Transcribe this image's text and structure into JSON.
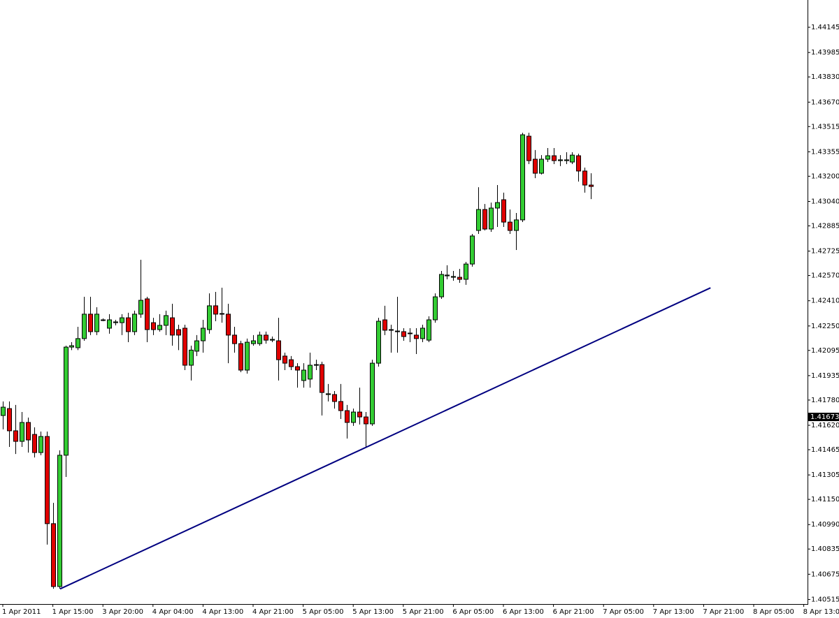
{
  "chart_data": {
    "type": "candlestick",
    "open": [
      1.41682,
      1.41726,
      1.41585,
      1.41518,
      1.41638,
      1.41562,
      1.41447,
      1.41549,
      1.40996,
      1.40597,
      1.4143,
      1.42116,
      1.42112,
      1.4217,
      1.42325,
      1.42214,
      1.42289,
      1.42236,
      1.42271,
      1.42271,
      1.42302,
      1.42214,
      1.42325,
      1.42422,
      1.42271,
      1.42227,
      1.42254,
      1.42302,
      1.42227,
      1.42236,
      1.42001,
      1.4209,
      1.42156,
      1.42227,
      1.42378,
      1.42325,
      1.42325,
      1.42192,
      1.42138,
      1.4197,
      1.42138,
      1.42138,
      1.42192,
      1.4216,
      1.42156,
      1.42059,
      1.42036,
      1.41992,
      1.41904,
      1.41913,
      1.42001,
      1.42005,
      1.41815,
      1.41815,
      1.41771,
      1.41713,
      1.41638,
      1.41704,
      1.41673,
      1.41629,
      1.42014,
      1.42289,
      1.42223,
      1.42214,
      1.42214,
      1.42201,
      1.42192,
      1.4217,
      1.4216,
      1.42289,
      1.42435,
      1.42568,
      1.42559,
      1.42559,
      1.42546,
      1.42643,
      1.42856,
      1.42989,
      1.42865,
      1.42998,
      1.43051,
      1.42909,
      1.42856,
      1.42923,
      1.43454,
      1.43308,
      1.43219,
      1.43308,
      1.4333,
      1.43299,
      1.43299,
      1.4329,
      1.4333,
      1.43233,
      1.43144
    ],
    "high": [
      1.41771,
      1.41771,
      1.41749,
      1.41704,
      1.41669,
      1.41607,
      1.4158,
      1.4158,
      1.41128,
      1.41461,
      1.42125,
      1.42147,
      1.42245,
      1.42435,
      1.42435,
      1.42369,
      1.42298,
      1.42325,
      1.42289,
      1.42325,
      1.42334,
      1.42347,
      1.4267,
      1.42435,
      1.42302,
      1.42325,
      1.42347,
      1.42391,
      1.42258,
      1.42258,
      1.42125,
      1.42192,
      1.42289,
      1.42457,
      1.42466,
      1.42493,
      1.42391,
      1.42245,
      1.42156,
      1.4217,
      1.42192,
      1.42214,
      1.42214,
      1.42183,
      1.42302,
      1.42081,
      1.42059,
      1.42014,
      1.42014,
      1.42081,
      1.42036,
      1.42023,
      1.41882,
      1.41837,
      1.41882,
      1.41749,
      1.41726,
      1.41859,
      1.41704,
      1.42036,
      1.42302,
      1.42378,
      1.42258,
      1.42435,
      1.42236,
      1.42236,
      1.42236,
      1.42258,
      1.42311,
      1.42457,
      1.42599,
      1.42635,
      1.42599,
      1.42612,
      1.42657,
      1.42834,
      1.4313,
      1.43024,
      1.43033,
      1.43144,
      1.43096,
      1.42989,
      1.42967,
      1.43476,
      1.43476,
      1.43366,
      1.43334,
      1.43379,
      1.43379,
      1.43334,
      1.43352,
      1.43352,
      1.43343,
      1.43255,
      1.43219
    ],
    "low": [
      1.41594,
      1.41483,
      1.41438,
      1.41483,
      1.41447,
      1.41416,
      1.4143,
      1.40863,
      1.40583,
      1.40583,
      1.41292,
      1.42097,
      1.42097,
      1.42156,
      1.42192,
      1.42192,
      1.4228,
      1.42201,
      1.42254,
      1.42192,
      1.42147,
      1.42192,
      1.42302,
      1.42147,
      1.42192,
      1.42214,
      1.42192,
      1.42125,
      1.42097,
      1.4197,
      1.41904,
      1.42059,
      1.42081,
      1.42201,
      1.4228,
      1.42271,
      1.42014,
      1.42081,
      1.41957,
      1.41948,
      1.42125,
      1.42125,
      1.42138,
      1.42147,
      1.41904,
      1.4197,
      1.4197,
      1.41859,
      1.41859,
      1.41859,
      1.4197,
      1.41682,
      1.41771,
      1.41726,
      1.4166,
      1.41536,
      1.41616,
      1.41625,
      1.41483,
      1.41616,
      1.41992,
      1.42192,
      1.42081,
      1.42081,
      1.42156,
      1.42147,
      1.42072,
      1.42147,
      1.42147,
      1.42271,
      1.42422,
      1.42546,
      1.42537,
      1.42524,
      1.42511,
      1.42626,
      1.42834,
      1.42856,
      1.42847,
      1.42878,
      1.42878,
      1.42834,
      1.42732,
      1.42909,
      1.43277,
      1.43188,
      1.43211,
      1.4329,
      1.43277,
      1.43264,
      1.43277,
      1.43277,
      1.43166,
      1.43096,
      1.43055
    ],
    "close": [
      1.41735,
      1.41585,
      1.41518,
      1.41638,
      1.41527,
      1.41447,
      1.41549,
      1.40996,
      1.40597,
      1.4143,
      1.42116,
      1.42125,
      1.4217,
      1.42325,
      1.42214,
      1.42325,
      1.42289,
      1.42289,
      1.42276,
      1.42302,
      1.42214,
      1.42325,
      1.42413,
      1.42227,
      1.42227,
      1.42254,
      1.42316,
      1.42192,
      1.42192,
      1.42001,
      1.42097,
      1.42156,
      1.42236,
      1.42378,
      1.42325,
      1.42329,
      1.42192,
      1.42138,
      1.4197,
      1.42147,
      1.42156,
      1.42192,
      1.4216,
      1.42165,
      1.42036,
      1.42014,
      1.41992,
      1.4197,
      1.4197,
      1.42001,
      1.42005,
      1.41828,
      1.4182,
      1.41771,
      1.41713,
      1.41638,
      1.41704,
      1.41673,
      1.41629,
      1.42014,
      1.4228,
      1.42223,
      1.42227,
      1.42218,
      1.42183,
      1.42205,
      1.4217,
      1.42236,
      1.42289,
      1.42435,
      1.42577,
      1.42573,
      1.42564,
      1.42546,
      1.42643,
      1.42821,
      1.42989,
      1.42865,
      1.42998,
      1.43033,
      1.42909,
      1.42856,
      1.42923,
      1.43463,
      1.43299,
      1.43219,
      1.43308,
      1.4333,
      1.43299,
      1.43304,
      1.43304,
      1.43334,
      1.43233,
      1.43144,
      1.43135
    ],
    "up_color": "#33cc33",
    "down_color": "#e00000",
    "xlim": [
      -0.447,
      128.603
    ],
    "xticks": [
      {
        "value": 0,
        "label": "1 Apr 2011"
      },
      {
        "value": 8,
        "label": "1 Apr 15:00"
      },
      {
        "value": 16,
        "label": "3 Apr 20:00"
      },
      {
        "value": 24,
        "label": "4 Apr 04:00"
      },
      {
        "value": 32,
        "label": "4 Apr 13:00"
      },
      {
        "value": 40,
        "label": "4 Apr 21:00"
      },
      {
        "value": 48,
        "label": "5 Apr 05:00"
      },
      {
        "value": 56,
        "label": "5 Apr 13:00"
      },
      {
        "value": 64,
        "label": "5 Apr 21:00"
      },
      {
        "value": 72,
        "label": "6 Apr 05:00"
      },
      {
        "value": 80,
        "label": "6 Apr 13:00"
      },
      {
        "value": 88,
        "label": "6 Apr 21:00"
      },
      {
        "value": 96,
        "label": "7 Apr 05:00"
      },
      {
        "value": 104,
        "label": "7 Apr 13:00"
      },
      {
        "value": 112,
        "label": "7 Apr 21:00"
      },
      {
        "value": 120,
        "label": "8 Apr 05:00"
      },
      {
        "value": 128,
        "label": "8 Apr 13:00"
      }
    ],
    "ylim": [
      1.40486,
      1.44318
    ],
    "yticks": [
      1.44145,
      1.43985,
      {
        "value": 1.4383,
        "label": "1.43830"
      },
      {
        "value": 1.4367,
        "label": "1.43670"
      },
      1.43515,
      1.43355,
      {
        "value": 1.432,
        "label": "1.43200"
      },
      {
        "value": 1.4304,
        "label": "1.43040"
      },
      1.42885,
      1.42725,
      {
        "value": 1.4257,
        "label": "1.42570"
      },
      {
        "value": 1.4241,
        "label": "1.42410"
      },
      {
        "value": 1.4225,
        "label": "1.42250"
      },
      1.42095,
      1.41935,
      {
        "value": 1.4178,
        "label": "1.41780"
      },
      {
        "value": 1.4162,
        "label": "1.41620"
      },
      1.41465,
      1.41305,
      {
        "value": 1.4115,
        "label": "1.41150"
      },
      {
        "value": 1.4099,
        "label": "1.40990"
      },
      1.40835,
      1.40675,
      1.40515
    ],
    "price_label": 1.41673,
    "trendline": {
      "x": [
        9.16,
        113.1
      ],
      "y": [
        1.40582,
        1.42492
      ],
      "color": "#000080"
    }
  }
}
